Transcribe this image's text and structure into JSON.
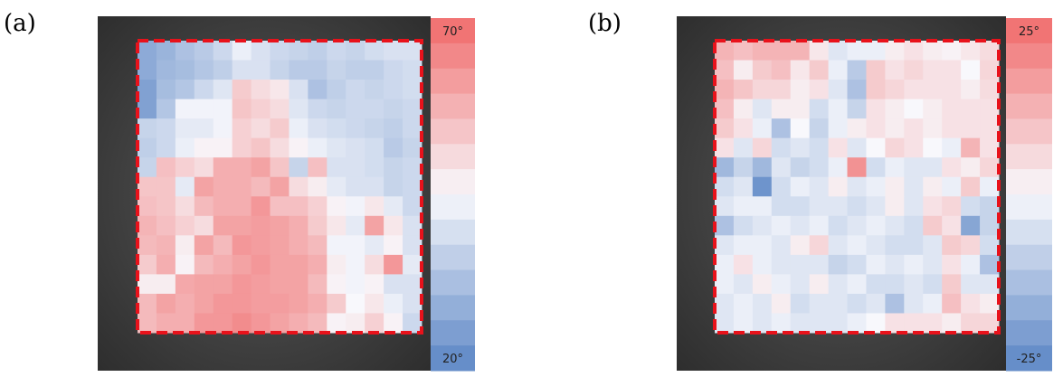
{
  "chart_data": [
    {
      "type": "heatmap",
      "title": "(a)",
      "vlim": [
        20,
        70
      ],
      "vticks": [
        {
          "value": 70,
          "label": "70°"
        },
        {
          "value": 20,
          "label": "20°"
        }
      ],
      "colors": [
        "#5b86c5",
        "#f8f8fc",
        "#f06a6a"
      ],
      "values": [
        [
          28,
          30,
          33,
          35,
          38,
          43,
          40,
          38,
          37,
          36,
          38,
          37,
          39,
          40,
          40
        ],
        [
          28,
          31,
          32,
          34,
          36,
          40,
          40,
          37,
          35,
          35,
          37,
          36,
          36,
          38,
          39
        ],
        [
          26,
          32,
          34,
          38,
          41,
          53,
          50,
          48,
          40,
          33,
          36,
          38,
          37,
          38,
          39
        ],
        [
          26,
          34,
          44,
          44,
          44,
          54,
          52,
          50,
          41,
          38,
          37,
          38,
          38,
          37,
          38
        ],
        [
          37,
          38,
          42,
          42,
          44,
          52,
          50,
          53,
          43,
          40,
          39,
          38,
          37,
          36,
          38
        ],
        [
          36,
          38,
          43,
          46,
          46,
          52,
          54,
          50,
          46,
          43,
          41,
          40,
          39,
          35,
          37
        ],
        [
          37,
          55,
          52,
          50,
          58,
          58,
          60,
          54,
          37,
          55,
          40,
          40,
          39,
          37,
          38
        ],
        [
          54,
          54,
          42,
          60,
          58,
          58,
          56,
          60,
          50,
          47,
          42,
          40,
          40,
          37,
          38
        ],
        [
          55,
          54,
          50,
          56,
          58,
          58,
          62,
          55,
          55,
          52,
          46,
          44,
          48,
          42,
          38
        ],
        [
          57,
          55,
          52,
          50,
          60,
          60,
          61,
          60,
          58,
          53,
          48,
          42,
          60,
          48,
          40
        ],
        [
          56,
          57,
          47,
          60,
          56,
          62,
          61,
          60,
          58,
          56,
          44,
          44,
          42,
          46,
          40
        ],
        [
          53,
          58,
          46,
          56,
          58,
          60,
          62,
          60,
          60,
          58,
          47,
          44,
          50,
          62,
          42
        ],
        [
          47,
          47,
          59,
          60,
          60,
          62,
          61,
          60,
          60,
          56,
          46,
          44,
          46,
          40,
          40
        ],
        [
          56,
          60,
          58,
          60,
          62,
          62,
          61,
          61,
          60,
          58,
          53,
          45,
          48,
          43,
          40
        ],
        [
          56,
          58,
          58,
          62,
          62,
          64,
          62,
          60,
          58,
          56,
          46,
          47,
          52,
          46,
          38
        ]
      ]
    },
    {
      "type": "heatmap",
      "title": "(b)",
      "vlim": [
        -25,
        25
      ],
      "vticks": [
        {
          "value": 25,
          "label": "25°"
        },
        {
          "value": -25,
          "label": "-25°"
        }
      ],
      "colors": [
        "#5b86c5",
        "#f8f8fc",
        "#f06a6a"
      ],
      "values": [
        [
          12,
          10,
          12,
          12,
          12,
          3,
          -4,
          -2,
          -2,
          2,
          4,
          2,
          1,
          3,
          5
        ],
        [
          10,
          2,
          8,
          10,
          3,
          8,
          -2,
          -10,
          8,
          4,
          6,
          4,
          4,
          0,
          6
        ],
        [
          12,
          9,
          6,
          6,
          2,
          4,
          -4,
          -12,
          8,
          6,
          4,
          4,
          4,
          2,
          5
        ],
        [
          10,
          2,
          -4,
          2,
          2,
          -6,
          -2,
          -8,
          4,
          2,
          0,
          2,
          4,
          4,
          4
        ],
        [
          8,
          4,
          -2,
          -12,
          0,
          -8,
          -2,
          2,
          4,
          2,
          4,
          2,
          4,
          4,
          4
        ],
        [
          4,
          -4,
          6,
          -6,
          -4,
          -6,
          4,
          -4,
          0,
          6,
          4,
          0,
          -2,
          12,
          4
        ],
        [
          -14,
          -8,
          -14,
          -4,
          -8,
          -6,
          -2,
          18,
          -6,
          -2,
          -4,
          -4,
          4,
          2,
          6
        ],
        [
          -6,
          -4,
          -22,
          -6,
          -2,
          -4,
          2,
          -4,
          -2,
          2,
          -4,
          2,
          -2,
          8,
          -2
        ],
        [
          -4,
          -2,
          -2,
          -6,
          -6,
          -4,
          -4,
          -6,
          -4,
          2,
          -4,
          4,
          6,
          -6,
          -8
        ],
        [
          -12,
          -6,
          -4,
          -2,
          -4,
          -2,
          -6,
          -4,
          -2,
          -4,
          -6,
          8,
          4,
          -18,
          -8
        ],
        [
          -4,
          -2,
          -2,
          -4,
          2,
          6,
          -4,
          -2,
          -4,
          -6,
          -6,
          -4,
          8,
          6,
          -6
        ],
        [
          -2,
          4,
          -2,
          -4,
          -4,
          -4,
          -8,
          -6,
          -2,
          -4,
          -2,
          -4,
          4,
          -2,
          -12
        ],
        [
          -2,
          -4,
          2,
          -2,
          -4,
          2,
          -4,
          -2,
          -6,
          -6,
          -4,
          -6,
          8,
          -4,
          -4
        ],
        [
          -4,
          -2,
          -4,
          2,
          -6,
          -4,
          -4,
          -6,
          -4,
          -12,
          -4,
          -2,
          10,
          4,
          2
        ],
        [
          -4,
          -2,
          -4,
          -2,
          -4,
          -4,
          -4,
          -2,
          0,
          4,
          4,
          4,
          2,
          6,
          6
        ]
      ]
    }
  ]
}
